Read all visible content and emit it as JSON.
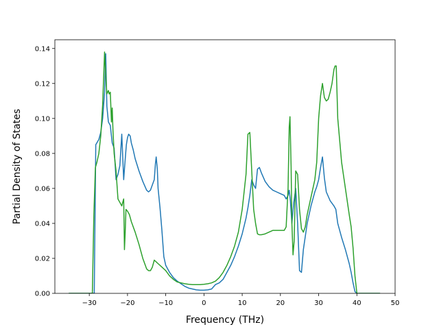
{
  "chart_data": {
    "type": "line",
    "title": "",
    "xlabel": "Frequency (THz)",
    "ylabel": "Partial Density of States",
    "xlim": [
      -39,
      50
    ],
    "ylim": [
      0,
      0.145
    ],
    "xticks": [
      -30,
      -20,
      -10,
      0,
      10,
      20,
      30,
      40,
      50
    ],
    "xtick_labels": [
      "−30",
      "−20",
      "−10",
      "0",
      "10",
      "20",
      "30",
      "40",
      "50"
    ],
    "yticks": [
      0,
      0.02,
      0.04,
      0.06,
      0.08,
      0.1,
      0.12,
      0.14
    ],
    "ytick_labels": [
      "0.00",
      "0.02",
      "0.04",
      "0.06",
      "0.08",
      "0.10",
      "0.12",
      "0.14"
    ],
    "grid": false,
    "legend": null,
    "series": [
      {
        "color": "#1f77b4",
        "x": [
          -35.3,
          -29.2,
          -28.7,
          -28.3,
          -27.5,
          -27.0,
          -26.5,
          -26.0,
          -25.7,
          -25.4,
          -25.0,
          -24.5,
          -24.0,
          -23.5,
          -23.0,
          -22.5,
          -22.0,
          -21.5,
          -21.0,
          -20.7,
          -20.3,
          -20.0,
          -19.7,
          -19.3,
          -19.0,
          -18.5,
          -18.0,
          -17.0,
          -16.0,
          -15.0,
          -14.5,
          -14.0,
          -13.5,
          -13.0,
          -12.7,
          -12.5,
          -12.2,
          -12.0,
          -11.5,
          -11.0,
          -10.5,
          -10.0,
          -9.0,
          -8.0,
          -7.0,
          -6.0,
          -5.0,
          -4.0,
          -3.0,
          -2.0,
          -1.0,
          0.0,
          1.0,
          2.0,
          3.0,
          4.0,
          5.0,
          6.0,
          7.0,
          8.0,
          9.0,
          10.0,
          11.0,
          11.5,
          12.0,
          12.5,
          13.0,
          13.5,
          14.0,
          14.5,
          15.0,
          16.0,
          17.0,
          18.0,
          19.0,
          20.0,
          21.0,
          21.5,
          22.0,
          22.3,
          22.6,
          23.0,
          23.5,
          24.0,
          24.5,
          25.0,
          25.5,
          26.0,
          27.0,
          28.0,
          29.0,
          29.5,
          30.0,
          30.5,
          31.0,
          31.5,
          32.0,
          33.0,
          34.0,
          34.5,
          35.0,
          36.0,
          37.0,
          38.0,
          38.5,
          39.0,
          39.5,
          40.0,
          42.0,
          46.0
        ],
        "y": [
          0,
          0,
          0,
          0.085,
          0.088,
          0.092,
          0.1,
          0.115,
          0.137,
          0.107,
          0.098,
          0.096,
          0.086,
          0.083,
          0.065,
          0.068,
          0.073,
          0.091,
          0.065,
          0.074,
          0.085,
          0.089,
          0.091,
          0.09,
          0.086,
          0.082,
          0.077,
          0.07,
          0.064,
          0.059,
          0.058,
          0.059,
          0.062,
          0.065,
          0.074,
          0.078,
          0.071,
          0.06,
          0.049,
          0.036,
          0.021,
          0.016,
          0.012,
          0.009,
          0.007,
          0.0055,
          0.004,
          0.003,
          0.0025,
          0.002,
          0.0018,
          0.0018,
          0.002,
          0.0025,
          0.005,
          0.006,
          0.008,
          0.012,
          0.016,
          0.021,
          0.027,
          0.034,
          0.043,
          0.049,
          0.056,
          0.065,
          0.062,
          0.06,
          0.071,
          0.072,
          0.069,
          0.064,
          0.061,
          0.059,
          0.058,
          0.057,
          0.056,
          0.054,
          0.056,
          0.059,
          0.053,
          0.04,
          0.052,
          0.06,
          0.04,
          0.013,
          0.012,
          0.025,
          0.04,
          0.05,
          0.058,
          0.061,
          0.065,
          0.072,
          0.078,
          0.066,
          0.058,
          0.053,
          0.05,
          0.048,
          0.04,
          0.032,
          0.025,
          0.017,
          0.012,
          0.006,
          0.001,
          0,
          0,
          0
        ]
      },
      {
        "color": "#2ca02c",
        "x": [
          -35.3,
          -29.2,
          -28.8,
          -28.4,
          -28.0,
          -27.5,
          -27.0,
          -26.5,
          -26.0,
          -25.7,
          -25.4,
          -25.0,
          -24.8,
          -24.5,
          -24.2,
          -24.0,
          -23.8,
          -23.5,
          -23.0,
          -22.5,
          -22.0,
          -21.5,
          -21.0,
          -20.8,
          -20.6,
          -20.4,
          -20.0,
          -19.5,
          -19.0,
          -18.0,
          -17.0,
          -16.0,
          -15.0,
          -14.5,
          -14.0,
          -13.5,
          -13.0,
          -12.5,
          -12.0,
          -11.0,
          -10.0,
          -9.0,
          -8.0,
          -7.0,
          -6.0,
          -5.0,
          -4.0,
          -3.0,
          -2.0,
          -1.0,
          0.0,
          1.0,
          2.0,
          3.0,
          4.0,
          5.0,
          6.0,
          7.0,
          8.0,
          9.0,
          10.0,
          11.0,
          11.5,
          12.0,
          12.5,
          13.0,
          13.5,
          14.0,
          14.5,
          15.0,
          16.0,
          17.0,
          18.0,
          19.0,
          20.0,
          21.0,
          21.5,
          22.0,
          22.3,
          22.5,
          22.8,
          23.0,
          23.3,
          23.6,
          24.0,
          24.5,
          25.0,
          25.5,
          26.0,
          26.5,
          27.0,
          28.0,
          29.0,
          29.5,
          30.0,
          30.5,
          31.0,
          31.5,
          32.0,
          32.5,
          33.0,
          33.5,
          34.0,
          34.3,
          34.6,
          35.0,
          36.0,
          37.0,
          38.0,
          38.5,
          39.0,
          39.5,
          40.0,
          42.0,
          46.0
        ],
        "y": [
          0,
          0,
          0.045,
          0.072,
          0.075,
          0.08,
          0.09,
          0.108,
          0.138,
          0.125,
          0.114,
          0.116,
          0.114,
          0.115,
          0.098,
          0.106,
          0.093,
          0.08,
          0.07,
          0.054,
          0.052,
          0.05,
          0.054,
          0.025,
          0.035,
          0.048,
          0.047,
          0.045,
          0.041,
          0.035,
          0.028,
          0.02,
          0.014,
          0.013,
          0.013,
          0.015,
          0.019,
          0.018,
          0.017,
          0.015,
          0.013,
          0.01,
          0.008,
          0.0065,
          0.006,
          0.0055,
          0.0052,
          0.005,
          0.005,
          0.005,
          0.0052,
          0.0055,
          0.006,
          0.007,
          0.009,
          0.012,
          0.016,
          0.021,
          0.027,
          0.035,
          0.048,
          0.068,
          0.091,
          0.092,
          0.07,
          0.048,
          0.04,
          0.034,
          0.0335,
          0.0335,
          0.034,
          0.035,
          0.036,
          0.036,
          0.036,
          0.036,
          0.038,
          0.06,
          0.095,
          0.101,
          0.072,
          0.04,
          0.022,
          0.03,
          0.07,
          0.068,
          0.048,
          0.037,
          0.035,
          0.038,
          0.045,
          0.055,
          0.065,
          0.075,
          0.1,
          0.113,
          0.12,
          0.112,
          0.11,
          0.111,
          0.115,
          0.12,
          0.128,
          0.13,
          0.13,
          0.1,
          0.075,
          0.06,
          0.045,
          0.038,
          0.026,
          0.01,
          0,
          0,
          0
        ]
      }
    ]
  }
}
